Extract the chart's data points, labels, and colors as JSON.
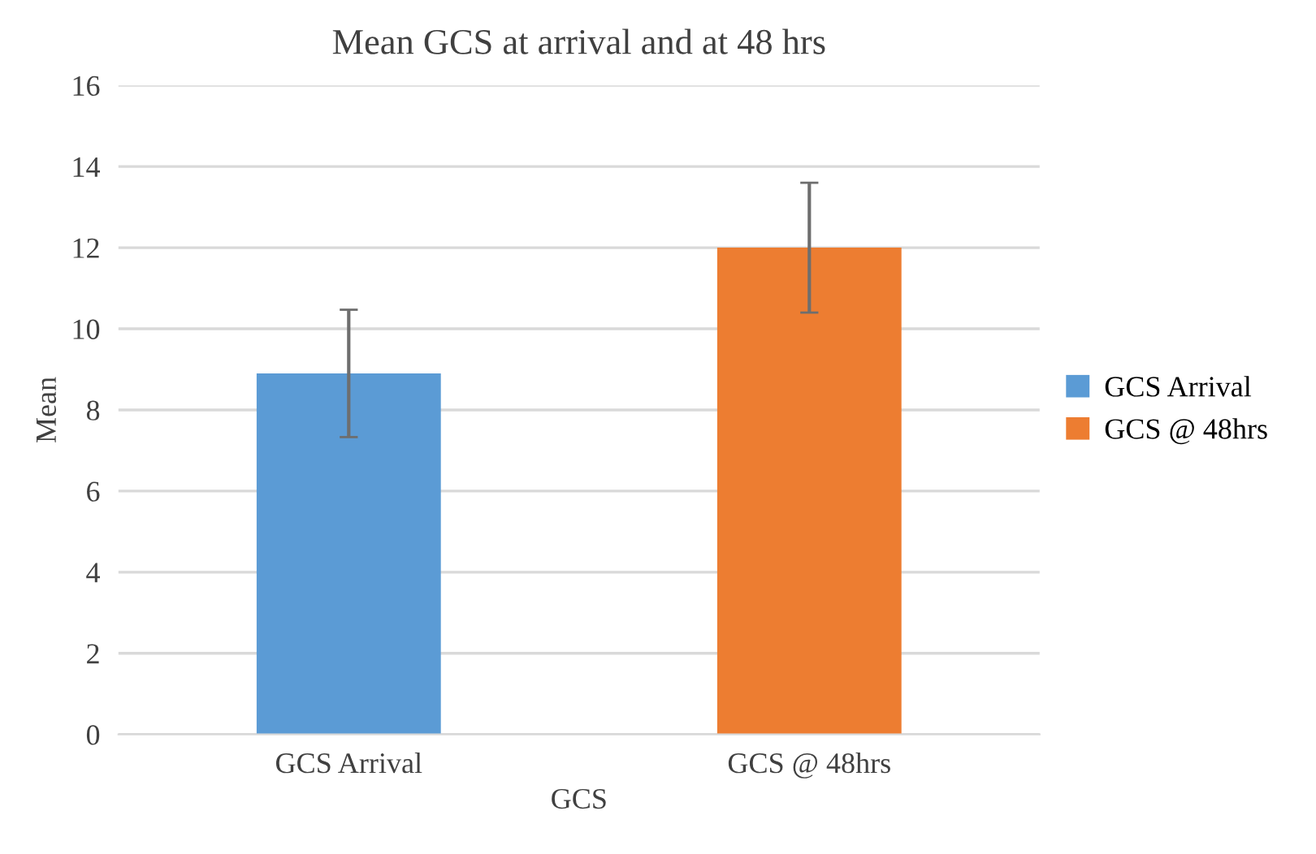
{
  "chart_data": {
    "type": "bar",
    "title": "Mean GCS at arrival and at 48 hrs",
    "xlabel": "GCS",
    "ylabel": "Mean",
    "categories": [
      "GCS Arrival",
      "GCS @ 48hrs"
    ],
    "series": [
      {
        "name": "GCS Arrival",
        "color": "#5b9bd5",
        "values": [
          8.9,
          null
        ],
        "errors": [
          1.57,
          null
        ]
      },
      {
        "name": "GCS @ 48hrs",
        "color": "#ed7d31",
        "values": [
          null,
          12.0
        ],
        "errors": [
          null,
          1.6
        ]
      }
    ],
    "ylim": [
      0,
      16
    ],
    "yticks": [
      0,
      2,
      4,
      6,
      8,
      10,
      12,
      14,
      16
    ],
    "grid": "y",
    "legend": "right"
  }
}
